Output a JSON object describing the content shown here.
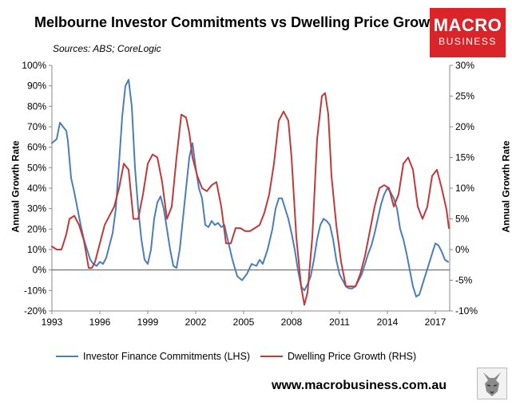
{
  "title": "Melbourne Investor Commitments vs Dwelling Price Growth",
  "sources": "Sources: ABS; CoreLogic",
  "logo": {
    "line1": "MACRO",
    "line2": "BUSINESS",
    "color": "#d9252a"
  },
  "website": "www.macrobusiness.com.au",
  "chart_data": {
    "type": "line",
    "xlim": [
      1993,
      2017.9
    ],
    "x_ticks": [
      "1993",
      "1996",
      "1999",
      "2002",
      "2005",
      "2008",
      "2011",
      "2014",
      "2017"
    ],
    "x_tick_values": [
      1993,
      1996,
      1999,
      2002,
      2005,
      2008,
      2011,
      2014,
      2017
    ],
    "ylabel_left": "Annual Growth Rate",
    "ylabel_right": "Annual Growth Rate",
    "ylim_left": [
      -20,
      100
    ],
    "ylim_right": [
      -10,
      30
    ],
    "y_ticks_left": [
      "100%",
      "90%",
      "80%",
      "70%",
      "60%",
      "50%",
      "40%",
      "30%",
      "20%",
      "10%",
      "0%",
      "-10%",
      "-20%"
    ],
    "y_ticks_right": [
      "30%",
      "25%",
      "20%",
      "15%",
      "10%",
      "5%",
      "0%",
      "-5%",
      "-10%"
    ],
    "grid": false,
    "legend_position": "bottom",
    "series": [
      {
        "name": "Investor Finance Commitments (LHS)",
        "axis": "left",
        "color": "#4a7ebb",
        "x": [
          1993.0,
          1993.3,
          1993.5,
          1993.7,
          1993.9,
          1994.0,
          1994.2,
          1994.4,
          1994.6,
          1994.8,
          1995.0,
          1995.2,
          1995.4,
          1995.6,
          1995.8,
          1996.0,
          1996.2,
          1996.4,
          1996.6,
          1996.8,
          1997.0,
          1997.2,
          1997.4,
          1997.6,
          1997.8,
          1998.0,
          1998.2,
          1998.4,
          1998.6,
          1998.8,
          1999.0,
          1999.2,
          1999.4,
          1999.6,
          1999.8,
          2000.0,
          2000.2,
          2000.4,
          2000.6,
          2000.8,
          2001.0,
          2001.2,
          2001.4,
          2001.6,
          2001.8,
          2002.0,
          2002.2,
          2002.4,
          2002.6,
          2002.8,
          2003.0,
          2003.2,
          2003.4,
          2003.6,
          2003.8,
          2004.0,
          2004.3,
          2004.6,
          2004.9,
          2005.2,
          2005.5,
          2005.8,
          2006.0,
          2006.2,
          2006.5,
          2006.8,
          2007.0,
          2007.2,
          2007.4,
          2007.6,
          2007.8,
          2008.0,
          2008.2,
          2008.4,
          2008.6,
          2008.8,
          2009.0,
          2009.2,
          2009.4,
          2009.6,
          2009.8,
          2010.0,
          2010.2,
          2010.4,
          2010.6,
          2010.8,
          2011.0,
          2011.2,
          2011.4,
          2011.6,
          2011.8,
          2012.0,
          2012.2,
          2012.4,
          2012.6,
          2012.8,
          2013.0,
          2013.2,
          2013.4,
          2013.6,
          2013.8,
          2014.0,
          2014.2,
          2014.4,
          2014.6,
          2014.8,
          2015.0,
          2015.2,
          2015.4,
          2015.6,
          2015.8,
          2016.0,
          2016.2,
          2016.4,
          2016.6,
          2016.8,
          2017.0,
          2017.2,
          2017.4,
          2017.6,
          2017.8
        ],
        "values": [
          62,
          64,
          72,
          70,
          68,
          63,
          45,
          38,
          30,
          22,
          15,
          10,
          5,
          3,
          2,
          4,
          3,
          6,
          12,
          18,
          30,
          52,
          75,
          90,
          93,
          80,
          50,
          30,
          15,
          5,
          3,
          10,
          25,
          33,
          36,
          30,
          20,
          10,
          2,
          1,
          10,
          25,
          40,
          55,
          62,
          50,
          40,
          35,
          22,
          21,
          24,
          22,
          23,
          21,
          22,
          15,
          5,
          -3,
          -5,
          -2,
          3,
          2,
          5,
          3,
          10,
          20,
          30,
          35,
          35,
          30,
          25,
          18,
          10,
          0,
          -8,
          -10,
          -7,
          -3,
          5,
          15,
          22,
          25,
          24,
          22,
          15,
          5,
          -2,
          -5,
          -8,
          -9,
          -9,
          -8,
          -5,
          -2,
          3,
          8,
          12,
          18,
          25,
          32,
          37,
          40,
          38,
          35,
          30,
          20,
          15,
          8,
          0,
          -8,
          -13,
          -12,
          -7,
          -2,
          3,
          8,
          13,
          12,
          9,
          5,
          4
        ]
      },
      {
        "name": "Dwelling Price Growth (RHS)",
        "axis": "right",
        "color": "#c0393b",
        "x": [
          1993.0,
          1993.3,
          1993.6,
          1993.9,
          1994.1,
          1994.4,
          1994.7,
          1995.0,
          1995.3,
          1995.5,
          1995.7,
          1996.0,
          1996.3,
          1996.6,
          1996.9,
          1997.2,
          1997.5,
          1997.8,
          1998.1,
          1998.4,
          1998.7,
          1999.0,
          1999.3,
          1999.6,
          1999.9,
          2000.2,
          2000.5,
          2000.8,
          2001.1,
          2001.4,
          2001.6,
          2001.8,
          2002.1,
          2002.4,
          2002.7,
          2003.0,
          2003.3,
          2003.6,
          2003.9,
          2004.2,
          2004.5,
          2004.8,
          2005.1,
          2005.4,
          2005.7,
          2006.0,
          2006.3,
          2006.6,
          2006.9,
          2007.2,
          2007.5,
          2007.8,
          2008.0,
          2008.3,
          2008.6,
          2008.8,
          2009.0,
          2009.3,
          2009.6,
          2009.9,
          2010.1,
          2010.3,
          2010.5,
          2010.8,
          2011.1,
          2011.4,
          2011.7,
          2012.0,
          2012.3,
          2012.6,
          2012.9,
          2013.2,
          2013.5,
          2013.8,
          2014.1,
          2014.4,
          2014.7,
          2015.0,
          2015.3,
          2015.6,
          2015.9,
          2016.2,
          2016.5,
          2016.8,
          2017.1,
          2017.4,
          2017.7,
          2017.85
        ],
        "values": [
          0.5,
          0,
          0,
          2.5,
          5,
          5.5,
          4,
          1.5,
          -3,
          -3,
          -2,
          1,
          4,
          5.5,
          7,
          10,
          14,
          13,
          5,
          5,
          9,
          14,
          15.5,
          15,
          11,
          5,
          7,
          15,
          22,
          21.5,
          19,
          15,
          12,
          10,
          9.5,
          10.5,
          11,
          7,
          1,
          1,
          3.5,
          3.5,
          3,
          3,
          3.5,
          4,
          6,
          9,
          14,
          21,
          22.5,
          21,
          15,
          2,
          -6,
          -9,
          -7,
          2,
          18,
          25,
          25.5,
          22,
          12,
          4,
          -2,
          -6,
          -6,
          -6,
          -4,
          -1,
          3,
          7,
          10,
          10.5,
          10,
          7,
          9,
          14,
          15,
          13,
          7,
          5,
          7,
          12,
          13,
          10,
          6.5,
          3.5
        ]
      }
    ]
  }
}
